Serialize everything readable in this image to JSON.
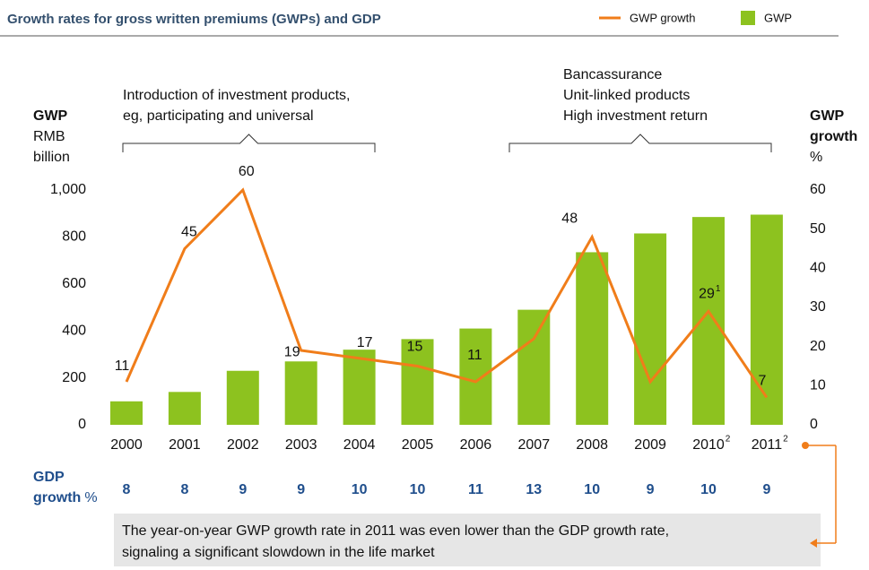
{
  "chart_data": {
    "type": "combo",
    "title": "Growth rates for gross written premiums (GWPs) and GDP",
    "categories": [
      "2000",
      "2001",
      "2002",
      "2003",
      "2004",
      "2005",
      "2006",
      "2007",
      "2008",
      "2009",
      "2010",
      "2011"
    ],
    "category_notes": [
      null,
      null,
      null,
      null,
      null,
      null,
      null,
      null,
      null,
      null,
      "2",
      "2"
    ],
    "series": [
      {
        "name": "GWP growth",
        "type": "line",
        "axis": "y2",
        "color": "#f07d1a",
        "values": [
          11,
          45,
          60,
          19,
          17,
          15,
          11,
          22,
          48,
          11,
          29,
          7
        ],
        "value_labels": [
          "11",
          "45",
          "60",
          "19",
          "17",
          "15",
          "11",
          null,
          "48",
          null,
          "29",
          "7"
        ],
        "label_notes": [
          null,
          null,
          null,
          null,
          null,
          null,
          null,
          null,
          null,
          null,
          "1",
          null
        ]
      },
      {
        "name": "GWP",
        "type": "bar",
        "color": "#8dc21f",
        "values": [
          100,
          140,
          230,
          270,
          320,
          365,
          410,
          490,
          735,
          815,
          885,
          895
        ]
      }
    ],
    "ylim": [
      0,
      1000
    ],
    "yticks": [
      0,
      200,
      400,
      600,
      800,
      {
        "value": 1000,
        "label": "1,000"
      }
    ],
    "y2lim": [
      0,
      60
    ],
    "y2ticks": [
      0,
      10,
      20,
      30,
      40,
      50,
      60
    ],
    "y_axis_label": {
      "title": "GWP",
      "lines": [
        "RMB",
        "billion"
      ]
    },
    "y2_axis_label": {
      "title": [
        "GWP",
        "growth"
      ],
      "unit": "%"
    },
    "annotations": [
      {
        "lines": [
          "Introduction of investment products,",
          "eg, participating and universal"
        ]
      },
      {
        "lines": [
          "Bancassurance",
          "Unit-linked products",
          "High investment return"
        ]
      }
    ],
    "gdp_growth": {
      "label": "GDP",
      "label2": "growth",
      "unit": "%",
      "values": [
        8,
        8,
        9,
        9,
        10,
        10,
        11,
        13,
        10,
        9,
        10,
        9
      ]
    },
    "note": {
      "lines": [
        "The year-on-year GWP growth rate in 2011 was even lower than the GDP growth rate,",
        "signaling a significant slowdown in the life market"
      ]
    }
  }
}
